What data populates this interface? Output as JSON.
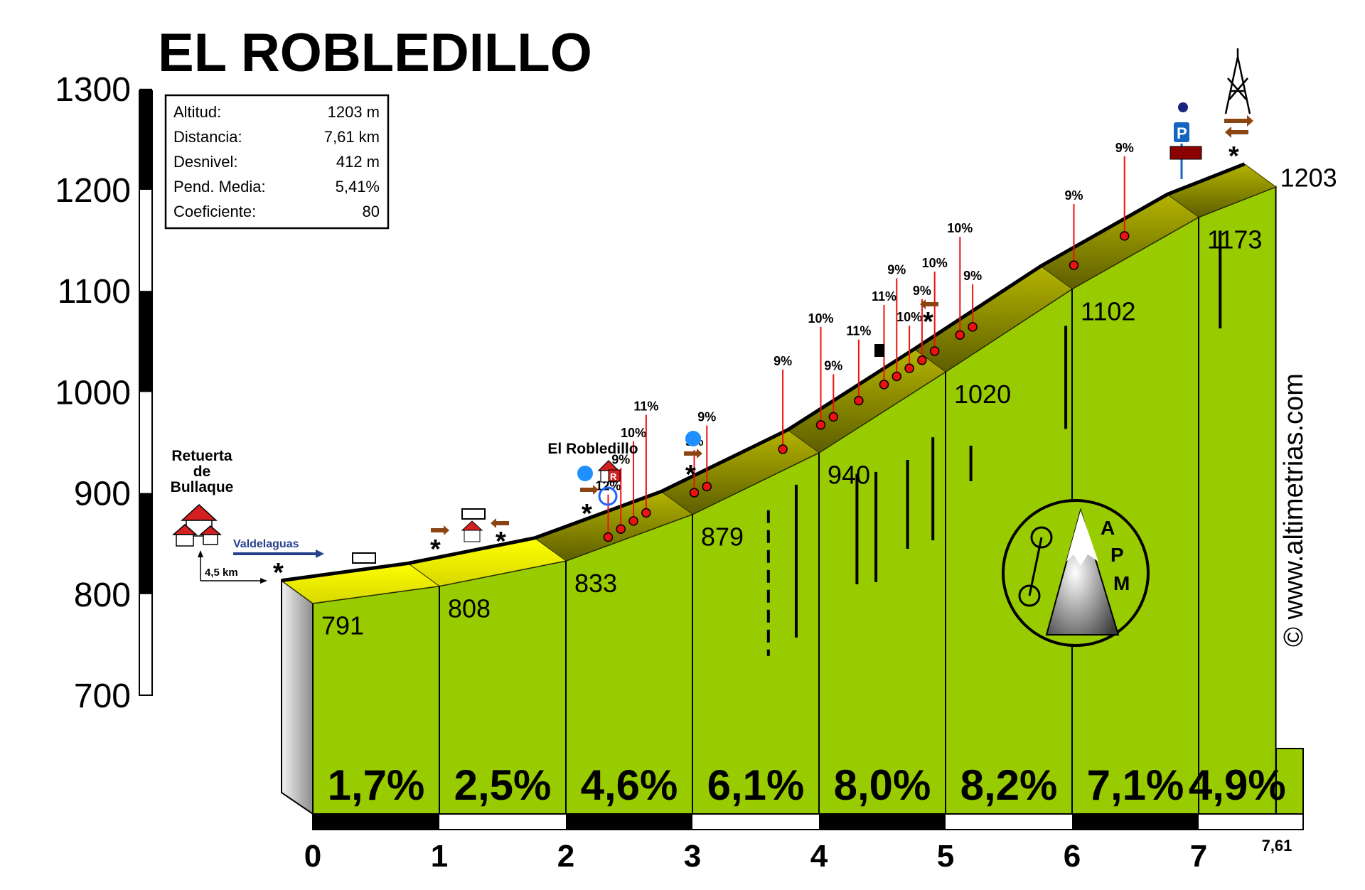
{
  "title": "EL ROBLEDILLO",
  "info_box": {
    "rows": [
      {
        "label": "Altitud:",
        "value": "1203 m"
      },
      {
        "label": "Distancia:",
        "value": "7,61 km"
      },
      {
        "label": "Desnivel:",
        "value": "412 m"
      },
      {
        "label": "Pend. Media:",
        "value": "5,41%"
      },
      {
        "label": "Coeficiente:",
        "value": "80"
      }
    ]
  },
  "labels": {
    "start_town": [
      "Retuerta",
      "de",
      "Bullaque"
    ],
    "village": "El Robledillo",
    "street": "Valdelaguas",
    "approach": "4,5 km",
    "credit": "© www.altimetrias.com",
    "logo": [
      "A",
      "P",
      "M"
    ]
  },
  "colors": {
    "fill": "#99cc00",
    "road": "#ffff00",
    "road_dark": "#6b6b00",
    "marker": "#ee1111"
  },
  "chart_data": {
    "type": "area",
    "title": "EL ROBLEDILLO",
    "xlabel": "",
    "ylabel": "",
    "xlim": [
      0,
      7.61
    ],
    "ylim": [
      700,
      1300
    ],
    "x_ticks": [
      "0",
      "1",
      "2",
      "3",
      "4",
      "5",
      "6",
      "7"
    ],
    "x_end_label": "7,61",
    "y_ticks": [
      "700",
      "800",
      "900",
      "1000",
      "1100",
      "1200",
      "1300"
    ],
    "km_points": [
      {
        "x": 0,
        "y": 791,
        "label": "791"
      },
      {
        "x": 1,
        "y": 808,
        "label": "808"
      },
      {
        "x": 2,
        "y": 833,
        "label": "833"
      },
      {
        "x": 3,
        "y": 879,
        "label": "879"
      },
      {
        "x": 4,
        "y": 940,
        "label": "940"
      },
      {
        "x": 5,
        "y": 1020,
        "label": "1020"
      },
      {
        "x": 6,
        "y": 1102,
        "label": "1102"
      },
      {
        "x": 7,
        "y": 1173,
        "label": "1173"
      },
      {
        "x": 7.61,
        "y": 1203,
        "label": "1203"
      }
    ],
    "segment_grades": [
      "1,7%",
      "2,5%",
      "4,6%",
      "6,1%",
      "8,0%",
      "8,2%",
      "7,1%",
      "4,9%"
    ],
    "ramps": [
      {
        "x": 2.47,
        "y": 844,
        "label": "12%"
      },
      {
        "x": 2.57,
        "y": 852,
        "label": "9%"
      },
      {
        "x": 2.67,
        "y": 860,
        "label": "10%"
      },
      {
        "x": 2.77,
        "y": 868,
        "label": "11%"
      },
      {
        "x": 3.15,
        "y": 888,
        "label": "9%"
      },
      {
        "x": 3.25,
        "y": 894,
        "label": "9%"
      },
      {
        "x": 3.85,
        "y": 931,
        "label": "9%"
      },
      {
        "x": 4.15,
        "y": 955,
        "label": "10%"
      },
      {
        "x": 4.25,
        "y": 963,
        "label": "9%"
      },
      {
        "x": 4.45,
        "y": 979,
        "label": "11%"
      },
      {
        "x": 4.65,
        "y": 995,
        "label": "11%"
      },
      {
        "x": 4.75,
        "y": 1003,
        "label": "9%"
      },
      {
        "x": 4.85,
        "y": 1011,
        "label": "10%"
      },
      {
        "x": 4.95,
        "y": 1019,
        "label": "9%"
      },
      {
        "x": 5.05,
        "y": 1028,
        "label": "10%"
      },
      {
        "x": 5.25,
        "y": 1044,
        "label": "10%"
      },
      {
        "x": 5.35,
        "y": 1052,
        "label": "9%"
      },
      {
        "x": 6.15,
        "y": 1113,
        "label": "9%"
      },
      {
        "x": 6.55,
        "y": 1142,
        "label": "9%"
      }
    ]
  }
}
